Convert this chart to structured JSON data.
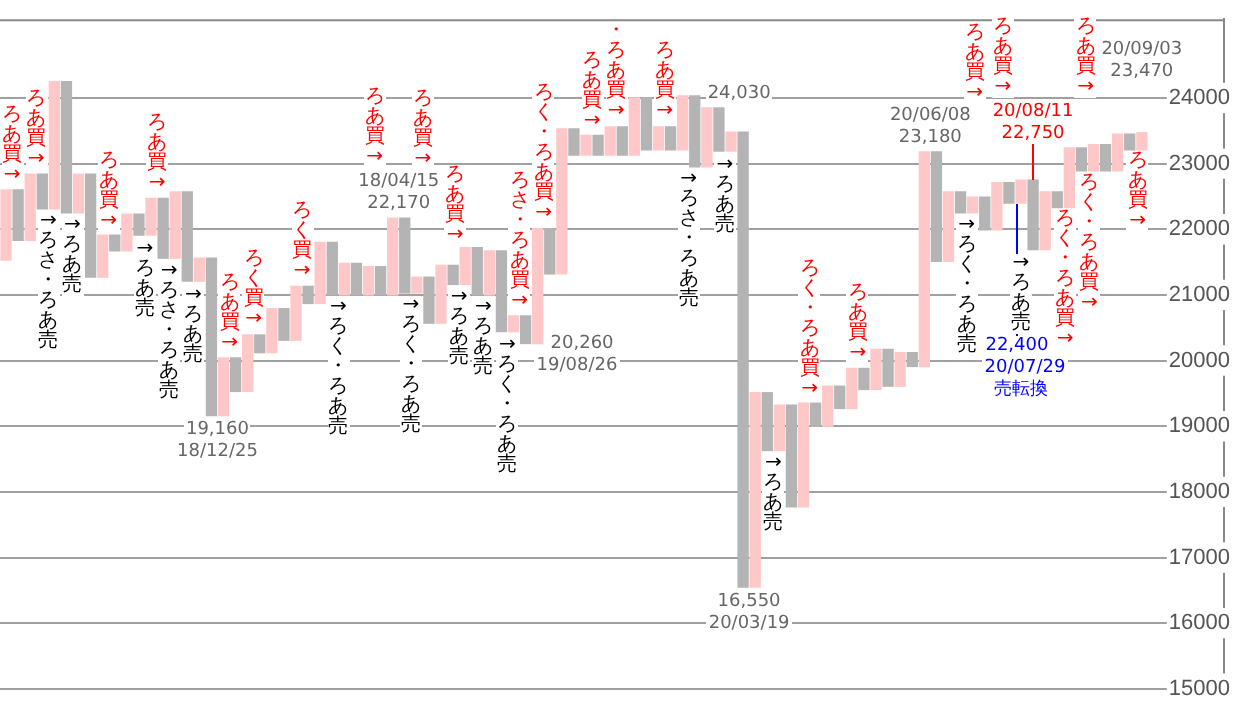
{
  "chart_data": {
    "type": "bar",
    "categories": [
      null,
      null,
      null,
      null,
      null,
      null,
      null,
      null,
      null,
      null,
      null,
      null,
      null,
      null,
      null,
      null,
      null,
      null,
      null,
      null,
      null,
      null,
      null,
      null,
      null,
      null,
      null,
      null,
      null,
      null,
      null,
      null,
      null,
      null,
      null,
      null,
      null,
      null,
      null,
      null,
      null,
      null,
      null,
      null,
      null,
      null,
      null,
      null,
      null,
      null,
      null,
      null,
      null,
      null,
      null,
      null,
      null,
      null,
      null,
      null,
      null,
      null,
      null,
      null,
      null,
      null,
      null,
      null,
      null,
      null,
      null,
      null,
      null,
      null,
      null,
      null,
      null,
      null,
      null,
      null,
      null,
      null,
      null,
      null,
      null,
      null,
      null,
      null,
      null,
      null,
      null,
      null,
      null,
      null,
      null
    ],
    "base": [
      21530,
      21830,
      21830,
      22310,
      22310,
      22250,
      22250,
      21270,
      21270,
      21670,
      21670,
      21910,
      21910,
      21560,
      21560,
      21210,
      21210,
      19160,
      19160,
      19530,
      19530,
      20120,
      20120,
      20310,
      20310,
      20870,
      20870,
      21000,
      21000,
      21000,
      21000,
      21000,
      21000,
      21030,
      21030,
      20570,
      20570,
      21160,
      21160,
      21000,
      21000,
      20440,
      20440,
      20260,
      20260,
      21320,
      21320,
      23130,
      23130,
      23130,
      23130,
      23130,
      23130,
      23210,
      23210,
      23210,
      23210,
      22950,
      22950,
      23190,
      23190,
      16550,
      16550,
      18630,
      18630,
      17770,
      17770,
      19000,
      19000,
      19270,
      19270,
      19560,
      19560,
      19610,
      19610,
      19910,
      19910,
      21510,
      21510,
      22250,
      22250,
      21990,
      21990,
      22400,
      22400,
      21690,
      21690,
      22330,
      22330,
      22890,
      22890,
      22890,
      22890,
      23210,
      23210
    ],
    "values": [
      1070,
      770,
      1010,
      530,
      1940,
      2000,
      590,
      1570,
      640,
      240,
      560,
      320,
      560,
      910,
      1010,
      1360,
      350,
      2400,
      880,
      510,
      860,
      270,
      670,
      480,
      820,
      260,
      930,
      800,
      480,
      480,
      430,
      430,
      1170,
      1140,
      240,
      700,
      880,
      290,
      560,
      720,
      670,
      1230,
      240,
      420,
      1750,
      690,
      2210,
      400,
      300,
      300,
      430,
      430,
      870,
      790,
      350,
      350,
      820,
      1080,
      900,
      660,
      290,
      6930,
      2960,
      880,
      690,
      1550,
      1580,
      350,
      610,
      340,
      610,
      320,
      610,
      560,
      510,
      210,
      3270,
      1670,
      1060,
      320,
      240,
      500,
      720,
      310,
      350,
      1060,
      880,
      240,
      910,
      350,
      400,
      400,
      560,
      240,
      260
    ],
    "colors": [
      "#ffc8c8",
      "#b4b4b4",
      "#ffc8c8",
      "#b4b4b4",
      "#ffc8c8",
      "#b4b4b4",
      "#ffc8c8",
      "#b4b4b4",
      "#ffc8c8",
      "#b4b4b4",
      "#ffc8c8",
      "#b4b4b4",
      "#ffc8c8",
      "#b4b4b4",
      "#ffc8c8",
      "#b4b4b4",
      "#ffc8c8",
      "#b4b4b4",
      "#ffc8c8",
      "#b4b4b4",
      "#ffc8c8",
      "#b4b4b4",
      "#ffc8c8",
      "#b4b4b4",
      "#ffc8c8",
      "#b4b4b4",
      "#ffc8c8",
      "#b4b4b4",
      "#ffc8c8",
      "#b4b4b4",
      "#ffc8c8",
      "#b4b4b4",
      "#ffc8c8",
      "#b4b4b4",
      "#ffc8c8",
      "#b4b4b4",
      "#ffc8c8",
      "#b4b4b4",
      "#ffc8c8",
      "#b4b4b4",
      "#ffc8c8",
      "#b4b4b4",
      "#ffc8c8",
      "#b4b4b4",
      "#ffc8c8",
      "#b4b4b4",
      "#ffc8c8",
      "#b4b4b4",
      "#ffc8c8",
      "#b4b4b4",
      "#ffc8c8",
      "#b4b4b4",
      "#ffc8c8",
      "#b4b4b4",
      "#ffc8c8",
      "#b4b4b4",
      "#ffc8c8",
      "#b4b4b4",
      "#ffc8c8",
      "#b4b4b4",
      "#ffc8c8",
      "#b4b4b4",
      "#ffc8c8",
      "#b4b4b4",
      "#ffc8c8",
      "#b4b4b4",
      "#ffc8c8",
      "#b4b4b4",
      "#ffc8c8",
      "#b4b4b4",
      "#ffc8c8",
      "#b4b4b4",
      "#ffc8c8",
      "#b4b4b4",
      "#ffc8c8",
      "#b4b4b4",
      "#ffc8c8",
      "#b4b4b4",
      "#ffc8c8",
      "#b4b4b4",
      "#ffc8c8",
      "#b4b4b4",
      "#ffc8c8",
      "#b4b4b4",
      "#ffc8c8",
      "#b4b4b4",
      "#ffc8c8",
      "#b4b4b4",
      "#ffc8c8",
      "#b4b4b4",
      "#ffc8c8",
      "#b4b4b4",
      "#ffc8c8",
      "#b4b4b4",
      "#ffc8c8"
    ],
    "ylim": [
      15000,
      25200
    ],
    "yticks": [
      15000,
      16000,
      17000,
      18000,
      19000,
      20000,
      21000,
      22000,
      23000,
      24000
    ],
    "grid": "y",
    "tick_labels": "y",
    "annotations": [
      "ろあ買→",
      "ろあ買→",
      "ろあ買→",
      "ろあ買→",
      "ろあ買→",
      "ろく買→",
      "ろく買→",
      "ろあ買→",
      "ろあ買→",
      "ろあ買→",
      "ろさ・ろあ買→",
      "ろく・ろあ買→",
      "ろあ買→",
      "・ろあ買→",
      "ろあ買→",
      "ろく・ろあ買→",
      "ろあ買→",
      "ろあ買→",
      "ろあ買→",
      "ろく・ろあ買→",
      "ろく・ろあ買→",
      "ろあ買→",
      "ろあ買→",
      "→ろさ・ろあ売",
      "→ろあ売",
      "→ろあ売",
      "→ろさ・ろあ売",
      "→ろあ売",
      "→ろく・ろあ売",
      "→ろく・ろあ売",
      "→ろあ売",
      "→ろあ売",
      "→ろく・ろあ売",
      "→ろさ・ろあ売",
      "→ろあ売",
      "→ろあ売",
      "→ろく・ろあ売",
      "→ろあ売",
      "19,160",
      "18/12/25",
      "18/04/15",
      "22,170",
      "20,260",
      "19/08/26",
      "24,030",
      "16,550",
      "20/03/19",
      "20/06/08",
      "23,180",
      "20/09/03",
      "23,470",
      "20/08/11",
      "22,750",
      "22,400",
      "20/07/29",
      "売転換"
    ]
  }
}
